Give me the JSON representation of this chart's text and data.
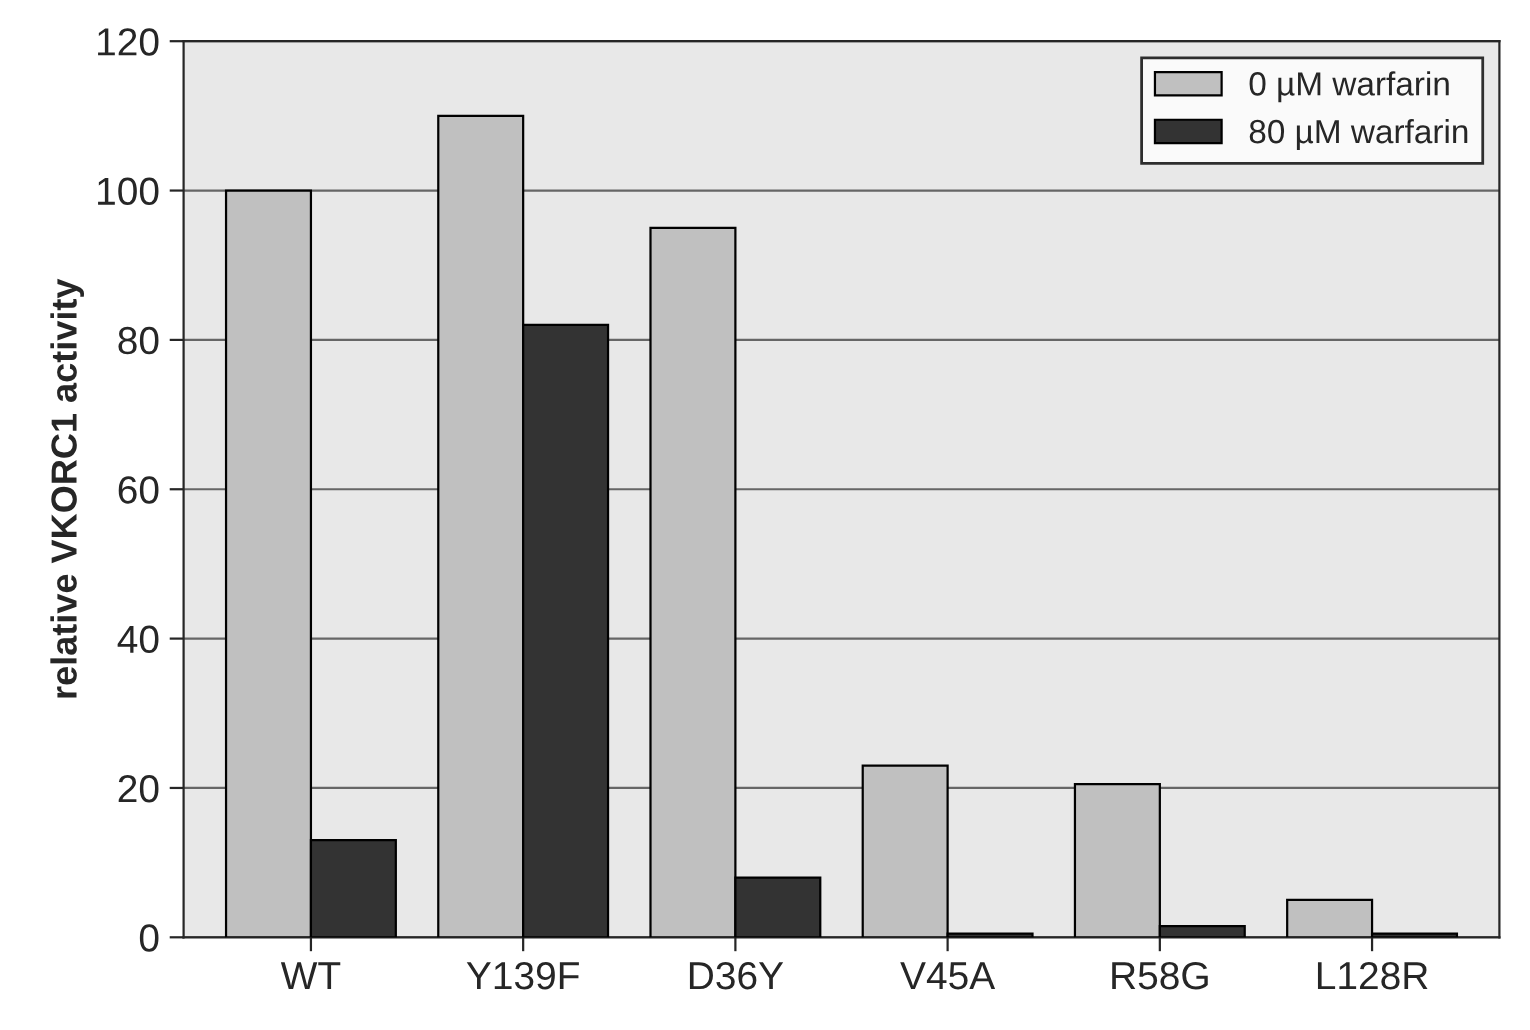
{
  "chart_data": {
    "type": "bar",
    "ylabel": "relative VKORC1 activity",
    "categories": [
      "WT",
      "Y139F",
      "D36Y",
      "V45A",
      "R58G",
      "L128R"
    ],
    "series": [
      {
        "name": "0 µM warfarin",
        "color": "#c0c0c0",
        "values": [
          100,
          110,
          95,
          23,
          20.5,
          5
        ]
      },
      {
        "name": "80 µM warfarin",
        "color": "#333333",
        "values": [
          13,
          82,
          8,
          0.5,
          1.5,
          0.5
        ]
      }
    ],
    "ylim": [
      0,
      120
    ],
    "yticks": [
      0,
      20,
      40,
      60,
      80,
      100,
      120
    ],
    "grid": "y",
    "legend": "top right"
  }
}
